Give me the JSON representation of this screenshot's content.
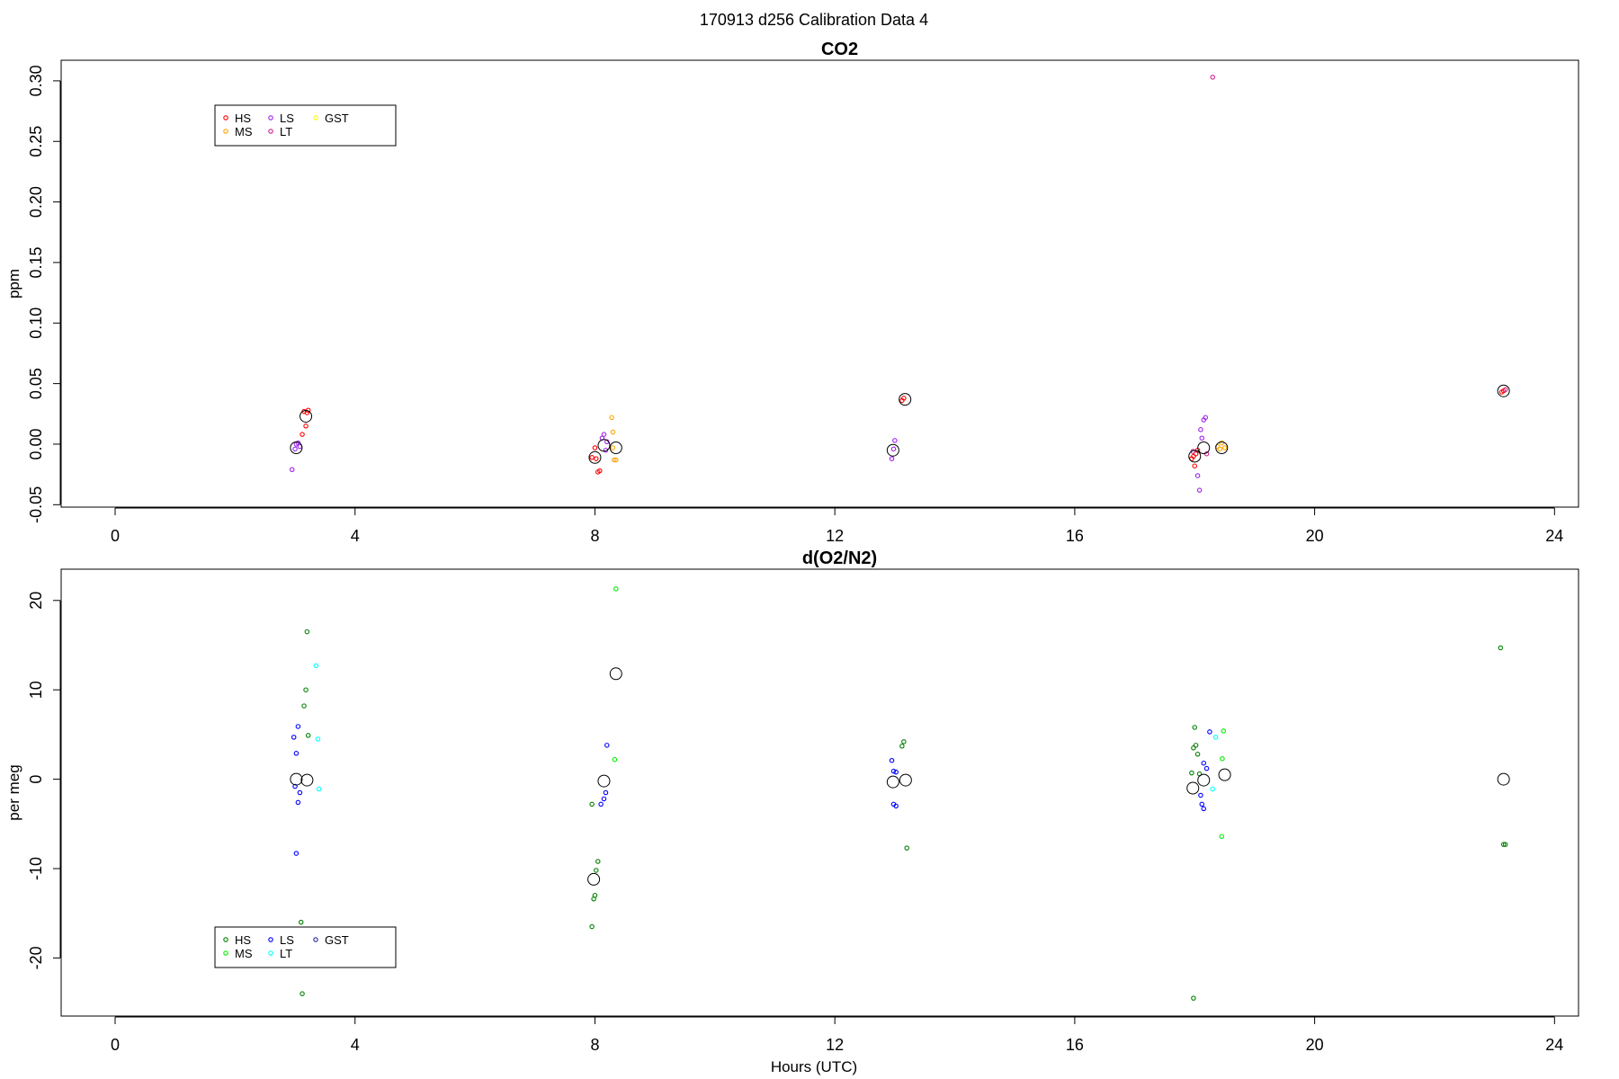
{
  "figure_title": "170913   d256   Calibration Data 4",
  "x_axis_title": "Hours (UTC)",
  "chart_data": [
    {
      "type": "scatter",
      "title": "CO2",
      "xlabel": "",
      "ylabel": "ppm",
      "xlim": [
        -0.9,
        24.4
      ],
      "ylim": [
        -0.052,
        0.317
      ],
      "xticks": [
        0,
        4,
        8,
        12,
        16,
        20,
        24
      ],
      "yticks": [
        -0.05,
        0.0,
        0.05,
        0.1,
        0.15,
        0.2,
        0.25,
        0.3
      ],
      "ytick_labels": [
        "-0.05",
        "0.00",
        "0.05",
        "0.10",
        "0.15",
        "0.20",
        "0.25",
        "0.30"
      ],
      "legend_placement": "top-left",
      "legend": [
        {
          "name": "HS",
          "color": "#ff0000"
        },
        {
          "name": "LS",
          "color": "#a020f0"
        },
        {
          "name": "GST",
          "color": "#ffff00"
        },
        {
          "name": "MS",
          "color": "#ffa500"
        },
        {
          "name": "LT",
          "color": "#d02090"
        }
      ],
      "series": [
        {
          "name": "HS",
          "color": "#ff0000",
          "points": [
            [
              3.15,
              0.027
            ],
            [
              3.18,
              0.015
            ],
            [
              3.12,
              0.008
            ],
            [
              3.2,
              0.026
            ],
            [
              3.22,
              0.028
            ],
            [
              7.95,
              -0.011
            ],
            [
              8.0,
              -0.003
            ],
            [
              8.05,
              -0.023
            ],
            [
              8.02,
              -0.012
            ],
            [
              8.08,
              -0.022
            ],
            [
              13.15,
              0.038
            ],
            [
              13.12,
              0.036
            ],
            [
              17.95,
              -0.012
            ],
            [
              18.0,
              -0.018
            ],
            [
              17.98,
              -0.01
            ],
            [
              18.02,
              -0.008
            ],
            [
              18.05,
              -0.005
            ],
            [
              23.15,
              0.044
            ],
            [
              23.12,
              0.043
            ]
          ]
        },
        {
          "name": "MS",
          "color": "#ffa500",
          "points": [
            [
              8.28,
              0.022
            ],
            [
              8.3,
              0.01
            ],
            [
              8.32,
              -0.013
            ],
            [
              8.35,
              -0.013
            ],
            [
              8.3,
              -0.003
            ],
            [
              18.42,
              -0.004
            ],
            [
              18.45,
              0.001
            ],
            [
              18.5,
              -0.003
            ],
            [
              18.38,
              -0.002
            ]
          ]
        },
        {
          "name": "LS",
          "color": "#a020f0",
          "points": [
            [
              2.95,
              -0.021
            ],
            [
              3.0,
              -0.004
            ],
            [
              3.02,
              0.0
            ],
            [
              3.05,
              0.001
            ],
            [
              3.08,
              -0.002
            ],
            [
              8.12,
              0.005
            ],
            [
              8.15,
              0.008
            ],
            [
              8.18,
              -0.005
            ],
            [
              8.2,
              0.002
            ],
            [
              12.95,
              -0.012
            ],
            [
              13.0,
              0.003
            ],
            [
              12.98,
              -0.004
            ],
            [
              18.1,
              0.012
            ],
            [
              18.15,
              0.02
            ],
            [
              18.18,
              0.022
            ],
            [
              18.05,
              -0.026
            ],
            [
              18.08,
              -0.038
            ],
            [
              18.12,
              0.005
            ]
          ]
        },
        {
          "name": "LT",
          "color": "#d02090",
          "points": [
            [
              18.3,
              0.303
            ],
            [
              18.2,
              -0.008
            ],
            [
              17.97,
              -0.006
            ],
            [
              23.18,
              0.045
            ]
          ]
        },
        {
          "name": "GST",
          "color": "#ffff00",
          "points": []
        }
      ],
      "means": [
        [
          3.02,
          -0.003
        ],
        [
          3.18,
          0.023
        ],
        [
          8.0,
          -0.011
        ],
        [
          8.15,
          -0.001
        ],
        [
          8.35,
          -0.003
        ],
        [
          12.97,
          -0.005
        ],
        [
          13.17,
          0.037
        ],
        [
          18.0,
          -0.01
        ],
        [
          18.15,
          -0.003
        ],
        [
          18.45,
          -0.003
        ],
        [
          23.15,
          0.044
        ]
      ]
    },
    {
      "type": "scatter",
      "title": "d(O2/N2)",
      "xlabel": "Hours (UTC)",
      "ylabel": "per meg",
      "xlim": [
        -0.9,
        24.4
      ],
      "ylim": [
        -26.5,
        23.5
      ],
      "xticks": [
        0,
        4,
        8,
        12,
        16,
        20,
        24
      ],
      "yticks": [
        -20,
        -10,
        0,
        10,
        20
      ],
      "ytick_labels": [
        "-20",
        "-10",
        "0",
        "10",
        "20"
      ],
      "legend_placement": "bottom-left",
      "legend": [
        {
          "name": "HS",
          "color": "#008000"
        },
        {
          "name": "LS",
          "color": "#0000ff"
        },
        {
          "name": "GST",
          "color": "#2c2c9c"
        },
        {
          "name": "MS",
          "color": "#00ee00"
        },
        {
          "name": "LT",
          "color": "#00ffff"
        }
      ],
      "series": [
        {
          "name": "HS",
          "color": "#008000",
          "points": [
            [
              3.2,
              16.5
            ],
            [
              3.18,
              10.0
            ],
            [
              3.15,
              8.2
            ],
            [
              3.22,
              4.9
            ],
            [
              3.1,
              -16.0
            ],
            [
              3.12,
              -24.0
            ],
            [
              7.95,
              -2.8
            ],
            [
              8.05,
              -9.2
            ],
            [
              8.02,
              -10.2
            ],
            [
              8.0,
              -13.0
            ],
            [
              7.98,
              -13.4
            ],
            [
              7.95,
              -16.5
            ],
            [
              13.15,
              4.2
            ],
            [
              13.12,
              3.7
            ],
            [
              13.2,
              -7.7
            ],
            [
              18.0,
              5.8
            ],
            [
              18.02,
              3.8
            ],
            [
              17.98,
              3.5
            ],
            [
              18.05,
              2.8
            ],
            [
              17.95,
              0.7
            ],
            [
              18.08,
              0.6
            ],
            [
              17.98,
              -24.5
            ],
            [
              23.1,
              14.7
            ],
            [
              23.15,
              -7.3
            ],
            [
              23.18,
              -7.3
            ]
          ]
        },
        {
          "name": "MS",
          "color": "#00ee00",
          "points": [
            [
              8.35,
              21.3
            ],
            [
              8.33,
              2.2
            ],
            [
              18.48,
              5.4
            ],
            [
              18.46,
              2.3
            ],
            [
              18.45,
              -6.4
            ]
          ]
        },
        {
          "name": "LS",
          "color": "#0000ff",
          "points": [
            [
              3.05,
              5.9
            ],
            [
              2.98,
              4.7
            ],
            [
              3.02,
              2.9
            ],
            [
              3.0,
              -0.8
            ],
            [
              3.08,
              -1.5
            ],
            [
              3.05,
              -2.6
            ],
            [
              3.02,
              -8.3
            ],
            [
              8.2,
              3.8
            ],
            [
              8.18,
              -1.5
            ],
            [
              8.15,
              -2.2
            ],
            [
              8.1,
              -2.8
            ],
            [
              12.95,
              2.1
            ],
            [
              12.98,
              0.9
            ],
            [
              13.02,
              0.8
            ],
            [
              12.98,
              -2.8
            ],
            [
              13.02,
              -3.0
            ],
            [
              18.25,
              5.3
            ],
            [
              18.15,
              1.8
            ],
            [
              18.2,
              1.2
            ],
            [
              18.1,
              -1.8
            ],
            [
              18.12,
              -2.8
            ],
            [
              18.15,
              -3.3
            ]
          ]
        },
        {
          "name": "LT",
          "color": "#00ffff",
          "points": [
            [
              3.35,
              12.7
            ],
            [
              3.38,
              4.5
            ],
            [
              3.4,
              -1.1
            ],
            [
              18.35,
              4.7
            ],
            [
              18.3,
              -1.1
            ]
          ]
        },
        {
          "name": "GST",
          "color": "#2c2c9c",
          "points": []
        }
      ],
      "means": [
        [
          3.02,
          0.0
        ],
        [
          3.2,
          -0.1
        ],
        [
          7.98,
          -11.2
        ],
        [
          8.15,
          -0.2
        ],
        [
          8.35,
          11.8
        ],
        [
          12.97,
          -0.3
        ],
        [
          13.18,
          -0.1
        ],
        [
          17.97,
          -1.0
        ],
        [
          18.15,
          -0.1
        ],
        [
          18.5,
          0.5
        ],
        [
          23.15,
          0.0
        ]
      ]
    }
  ]
}
